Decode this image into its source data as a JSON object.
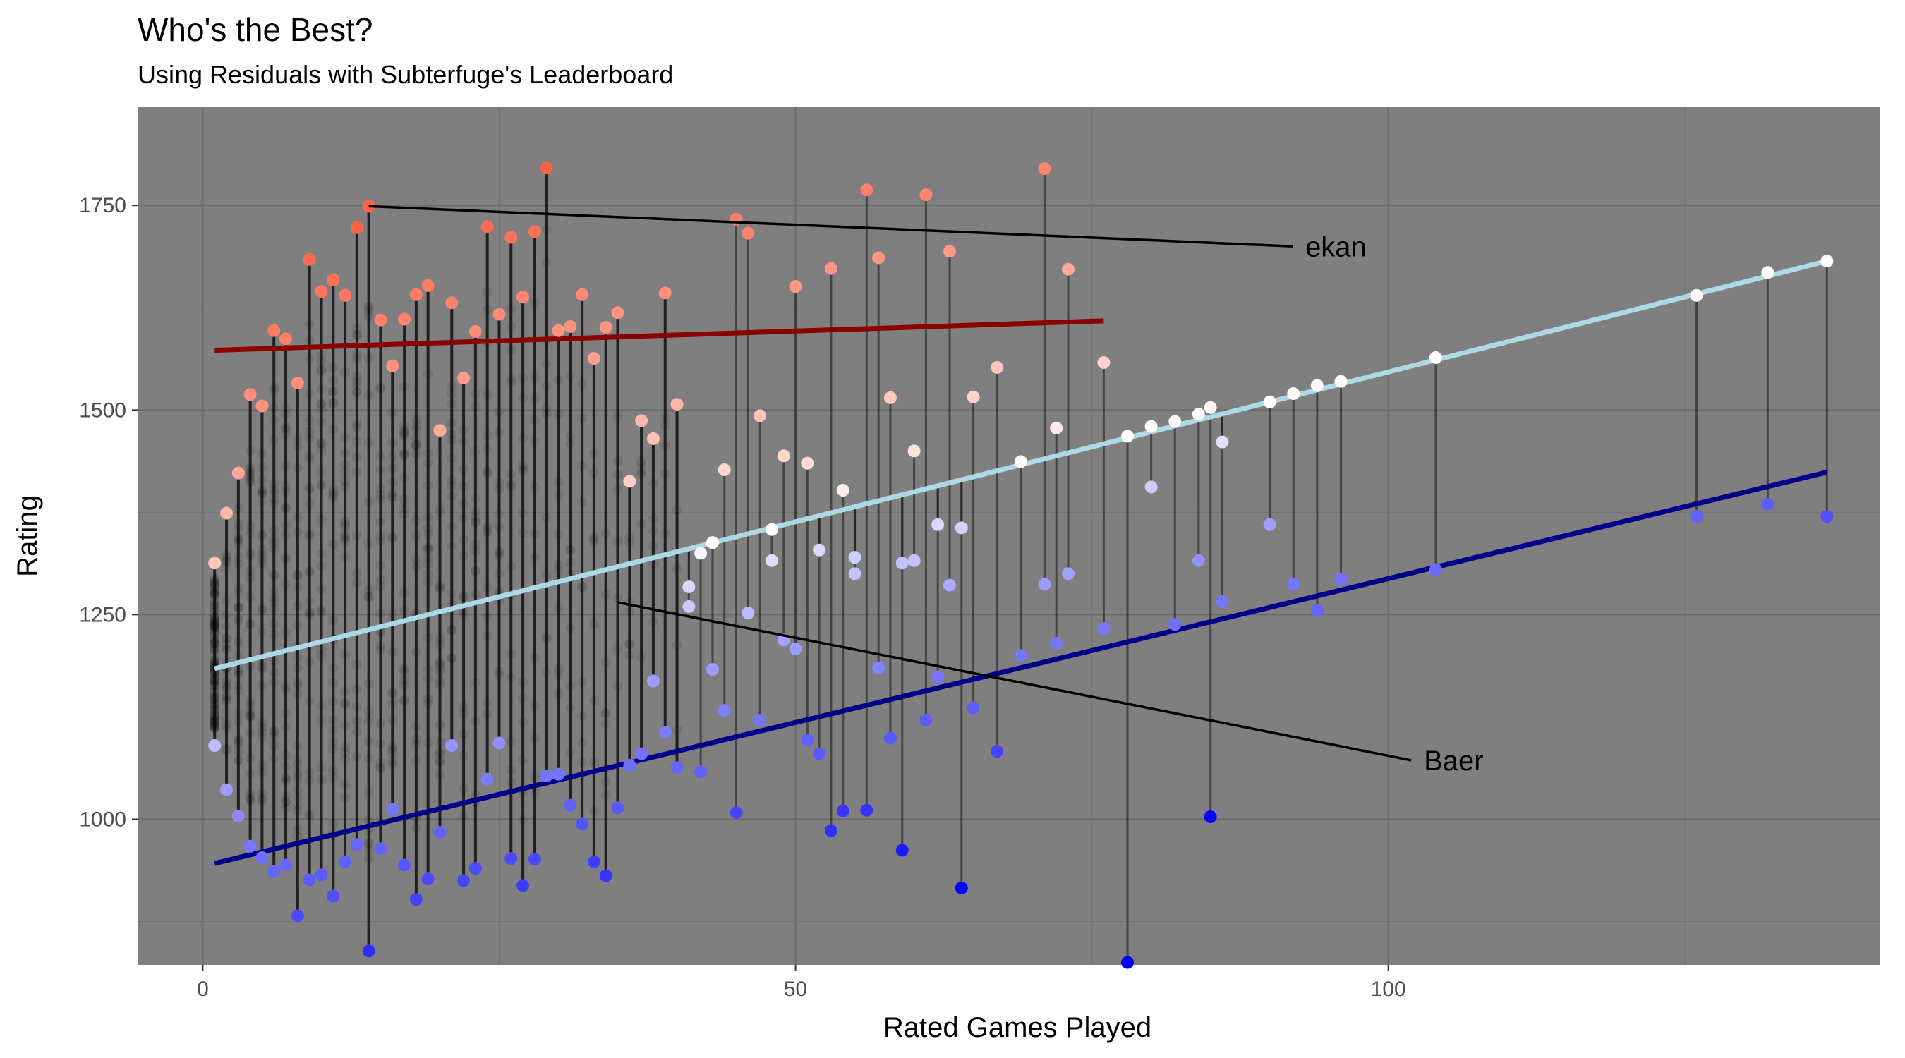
{
  "chart_data": {
    "type": "scatter",
    "title": "Who's the Best?",
    "subtitle": "Using Residuals with Subterfuge's Leaderboard",
    "xlabel": "Rated Games Played",
    "ylabel": "Rating",
    "xlim": [
      -5.5,
      141.5
    ],
    "ylim": [
      822,
      1870
    ],
    "x_ticks": [
      0,
      50,
      100
    ],
    "y_ticks": [
      1000,
      1250,
      1500,
      1750
    ],
    "grid": true,
    "legend": "none",
    "colors": {
      "panel_background": "#7f7f7f",
      "grid_major": "#6a6a6a",
      "grid_minor": "#737373",
      "top_fit": "#8b0000",
      "overall_fit": "#add8e6",
      "bottom_fit": "#00008b",
      "high_residual": "#ff6347",
      "neutral": "#ffffff",
      "low_residual": "#0000ff",
      "background_points": "#000000"
    },
    "series": [
      {
        "role": "top-fit",
        "x": [
          1,
          76
        ],
        "y": [
          1573,
          1609
        ]
      },
      {
        "role": "overall-fit",
        "x": [
          1,
          137
        ],
        "y": [
          1184,
          1682
        ]
      },
      {
        "role": "bottom-fit",
        "x": [
          1,
          137
        ],
        "y": [
          946,
          1424
        ]
      },
      {
        "role": "top-points",
        "x": [
          1,
          2,
          3,
          4,
          5,
          6,
          7,
          8,
          9,
          10,
          11,
          12,
          13,
          14,
          15,
          16,
          17,
          18,
          19,
          20,
          21,
          22,
          23,
          24,
          25,
          26,
          27,
          28,
          29,
          30,
          31,
          32,
          33,
          34,
          35,
          36,
          37,
          38,
          39,
          40,
          41,
          42,
          43,
          44,
          45,
          46,
          47,
          48,
          49,
          50,
          51,
          52,
          53,
          54,
          55,
          56,
          57,
          58,
          59,
          60,
          61,
          62,
          63,
          64,
          65,
          67,
          69,
          71,
          72,
          73,
          76,
          78,
          80,
          82,
          84,
          85,
          86,
          90,
          92,
          94,
          96,
          104,
          126,
          132,
          137
        ],
        "y": [
          1313,
          1374,
          1423,
          1519,
          1505,
          1597,
          1587,
          1533,
          1684,
          1645,
          1659,
          1640,
          1723,
          1749,
          1610,
          1554,
          1611,
          1641,
          1652,
          1475,
          1631,
          1539,
          1596,
          1724,
          1617,
          1711,
          1638,
          1718,
          1796,
          1597,
          1602,
          1641,
          1563,
          1601,
          1619,
          1413,
          1487,
          1465,
          1643,
          1507,
          1284,
          1325,
          1338,
          1427,
          1733,
          1716,
          1493,
          1354,
          1444,
          1651,
          1435,
          1329,
          1673,
          1402,
          1300,
          1769,
          1686,
          1515,
          1313,
          1450,
          1763,
          1360,
          1694,
          1356,
          1516,
          1552,
          1437,
          1795,
          1478,
          1672,
          1558,
          1468,
          1480,
          1486,
          1495,
          1503,
          1461,
          1510,
          1520,
          1530,
          1535,
          1564,
          1640,
          1668,
          1682
        ]
      },
      {
        "role": "bottom-points",
        "x": [
          1,
          2,
          3,
          4,
          5,
          6,
          7,
          8,
          9,
          10,
          11,
          12,
          13,
          14,
          15,
          16,
          17,
          18,
          19,
          20,
          21,
          22,
          23,
          24,
          25,
          26,
          27,
          28,
          29,
          30,
          31,
          32,
          33,
          34,
          35,
          36,
          37,
          38,
          39,
          40,
          41,
          42,
          43,
          44,
          45,
          46,
          47,
          48,
          49,
          50,
          51,
          52,
          53,
          54,
          55,
          56,
          57,
          58,
          59,
          60,
          61,
          62,
          63,
          64,
          65,
          67,
          69,
          71,
          72,
          73,
          76,
          78,
          80,
          82,
          84,
          85,
          86,
          90,
          92,
          94,
          96,
          104,
          126,
          132,
          137
        ],
        "y": [
          1090,
          1036,
          1004,
          967,
          953,
          936,
          944,
          882,
          926,
          932,
          906,
          948,
          969,
          839,
          964,
          1012,
          944,
          902,
          927,
          984,
          1090,
          925,
          940,
          1049,
          1093,
          952,
          919,
          951,
          1053,
          1055,
          1017,
          994,
          948,
          931,
          1014,
          1066,
          1080,
          1169,
          1106,
          1063,
          1260,
          1058,
          1183,
          1133,
          1008,
          1252,
          1121,
          1316,
          1219,
          1208,
          1097,
          1080,
          986,
          1010,
          1320,
          1011,
          1185,
          1099,
          962,
          1316,
          1121,
          1174,
          1286,
          916,
          1136,
          1083,
          1200,
          1287,
          1215,
          1300,
          1233,
          825,
          1406,
          1238,
          1316,
          1003,
          1266,
          1360,
          1287,
          1255,
          1293,
          1305,
          1370,
          1385,
          1370
        ]
      }
    ],
    "annotations": [
      {
        "label": "ekan",
        "point": [
          14,
          1749
        ],
        "text_at": [
          93,
          1700
        ]
      },
      {
        "label": "Baer",
        "point": [
          35,
          1265
        ],
        "text_at": [
          103,
          1072
        ]
      }
    ]
  }
}
